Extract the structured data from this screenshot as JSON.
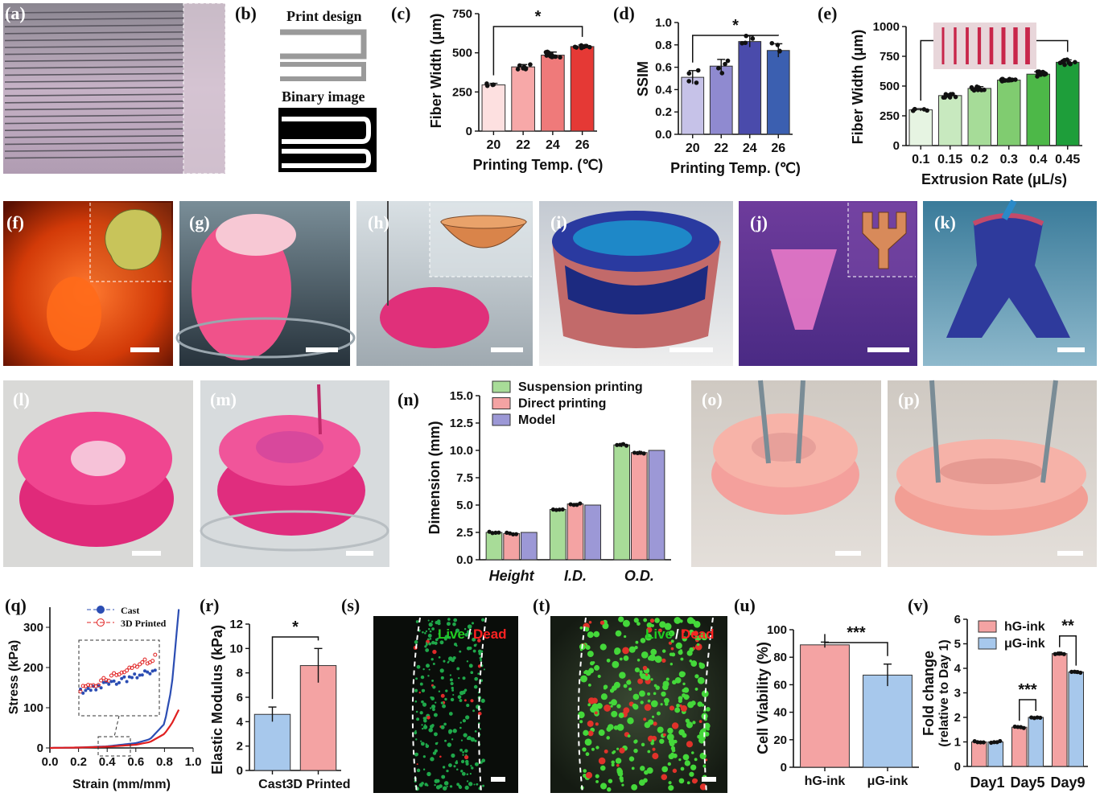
{
  "panel_labels": {
    "a": "(a)",
    "b": "(b)",
    "c": "(c)",
    "d": "(d)",
    "e": "(e)",
    "f": "(f)",
    "g": "(g)",
    "h": "(h)",
    "i": "(i)",
    "j": "(j)",
    "k": "(k)",
    "l": "(l)",
    "m": "(m)",
    "n": "(n)",
    "o": "(o)",
    "p": "(p)",
    "q": "(q)",
    "r": "(r)",
    "s": "(s)",
    "t": "(t)",
    "u": "(u)",
    "v": "(v)"
  },
  "panel_b": {
    "print_design": "Print design",
    "binary_image": "Binary image"
  },
  "panel_s": {
    "live": "Live",
    "slash": "/",
    "dead": "Dead"
  },
  "panel_t": {
    "live": "Live",
    "slash": "/",
    "dead": "Dead"
  },
  "colors": {
    "accent_red": "#e53935",
    "live_green": "#22cc22",
    "dead_red": "#ff2222"
  },
  "chart_data": [
    {
      "id": "c",
      "type": "bar",
      "categories": [
        "20",
        "22",
        "24",
        "26"
      ],
      "values": [
        295,
        410,
        485,
        540
      ],
      "errors": [
        10,
        15,
        20,
        10
      ],
      "points_per_bar": [
        4,
        8,
        12,
        10
      ],
      "colors": [
        "#fde0e0",
        "#f7a8a8",
        "#ef7a7a",
        "#e53935"
      ],
      "ylim": [
        0,
        750
      ],
      "yticks": [
        "0",
        "250",
        "500",
        "750"
      ],
      "ylabel": "Fiber Width (μm)",
      "xlabel": "Printing Temp. (℃)",
      "sig": {
        "from": 0,
        "to": 3,
        "label": "*"
      }
    },
    {
      "id": "d",
      "type": "bar",
      "categories": [
        "20",
        "22",
        "24",
        "26"
      ],
      "values": [
        0.51,
        0.61,
        0.83,
        0.75
      ],
      "errors": [
        0.06,
        0.06,
        0.05,
        0.06
      ],
      "points_per_bar": [
        4,
        4,
        4,
        4
      ],
      "colors": [
        "#c6c2e8",
        "#8f8ad0",
        "#4a4bab",
        "#3b5fb0"
      ],
      "ylim": [
        0,
        1.0
      ],
      "yticks": [
        "0.0",
        "0.2",
        "0.4",
        "0.6",
        "0.8",
        "1.0"
      ],
      "ylabel": "SSIM",
      "xlabel": "Printing Temp. (℃)",
      "sig": {
        "from": 0,
        "to": 3,
        "label": "*"
      }
    },
    {
      "id": "e",
      "type": "bar",
      "categories": [
        "0.1",
        "0.15",
        "0.2",
        "0.3",
        "0.4",
        "0.45"
      ],
      "values": [
        300,
        420,
        480,
        550,
        600,
        700
      ],
      "errors": [
        10,
        15,
        15,
        10,
        20,
        20
      ],
      "points_per_bar": [
        4,
        8,
        10,
        12,
        12,
        12
      ],
      "colors": [
        "#e6f4e2",
        "#c8e9bf",
        "#a6dc98",
        "#80cc70",
        "#4db848",
        "#1e9e3a"
      ],
      "ylim": [
        0,
        1000
      ],
      "yticks": [
        "0",
        "250",
        "500",
        "750",
        "1000"
      ],
      "ylabel": "Fiber Width (μm)",
      "xlabel": "Extrusion Rate (μL/s)",
      "sig": {
        "from": 0,
        "to": 5,
        "label": "****"
      }
    },
    {
      "id": "n",
      "type": "bar",
      "categories": [
        "Height",
        "I.D.",
        "O.D."
      ],
      "series": [
        {
          "name": "Suspension printing",
          "values": [
            2.5,
            4.6,
            10.5
          ],
          "color": "#a8dc98"
        },
        {
          "name": "Direct printing",
          "values": [
            2.4,
            5.1,
            9.8
          ],
          "color": "#f4a3a3"
        },
        {
          "name": "Model",
          "values": [
            2.5,
            5.0,
            10.0
          ],
          "color": "#9c98d6"
        }
      ],
      "ylim": [
        0,
        15
      ],
      "yticks": [
        "0.0",
        "2.5",
        "5.0",
        "7.5",
        "10.0",
        "12.5",
        "15.0"
      ],
      "ylabel": "Dimension (mm)"
    },
    {
      "id": "q",
      "type": "line",
      "x": [
        0,
        0.2,
        0.4,
        0.6,
        0.7,
        0.8,
        0.85,
        0.9
      ],
      "series": [
        {
          "name": "Cast",
          "y": [
            0,
            1,
            4,
            12,
            22,
            60,
            150,
            345
          ],
          "color": "#2b4db3"
        },
        {
          "name": "3D Printed",
          "y": [
            0,
            1,
            3,
            8,
            15,
            35,
            60,
            95
          ],
          "color": "#e02020"
        }
      ],
      "xlim": [
        0,
        1.0
      ],
      "ylim": [
        0,
        350
      ],
      "xticks": [
        "0.0",
        "0.2",
        "0.4",
        "0.6",
        "0.8",
        "1.0"
      ],
      "yticks": [
        "0",
        "100",
        "200",
        "300"
      ],
      "xlabel": "Strain (mm/mm)",
      "ylabel": "Stress (kPa)"
    },
    {
      "id": "r",
      "type": "bar",
      "categories": [
        "Cast",
        "3D  Printed"
      ],
      "values": [
        4.6,
        8.6
      ],
      "errors": [
        0.6,
        1.4
      ],
      "colors": [
        "#a7c8ec",
        "#f4a3a3"
      ],
      "ylim": [
        0,
        12
      ],
      "yticks": [
        "0",
        "2",
        "4",
        "6",
        "8",
        "10",
        "12"
      ],
      "ylabel": "Elastic Modulus (kPa)",
      "sig": {
        "from": 0,
        "to": 1,
        "label": "*"
      }
    },
    {
      "id": "u",
      "type": "bar",
      "categories": [
        "hG-ink",
        "μG-ink"
      ],
      "values": [
        89,
        67
      ],
      "errors": [
        2,
        8
      ],
      "colors": [
        "#f4a3a3",
        "#a7c8ec"
      ],
      "ylim": [
        0,
        100
      ],
      "yticks": [
        "0",
        "20",
        "40",
        "60",
        "80",
        "100"
      ],
      "ylabel": "Cell Viability (%)",
      "sig": {
        "from": 0,
        "to": 1,
        "label": "***"
      }
    },
    {
      "id": "v",
      "type": "bar",
      "categories": [
        "Day1",
        "Day5",
        "Day9"
      ],
      "series": [
        {
          "name": "hG-ink",
          "values": [
            1.0,
            1.6,
            4.6
          ],
          "color": "#f4a3a3"
        },
        {
          "name": "μG-ink",
          "values": [
            1.0,
            2.0,
            3.85
          ],
          "color": "#a7c8ec"
        }
      ],
      "ylim": [
        0,
        6
      ],
      "yticks": [
        "0",
        "1",
        "2",
        "3",
        "4",
        "5",
        "6"
      ],
      "ylabel": "Fold change",
      "ylabel2": "(relative to Day 1)",
      "sigs": [
        {
          "group": 1,
          "label": "***"
        },
        {
          "group": 2,
          "label": "**"
        }
      ]
    }
  ]
}
